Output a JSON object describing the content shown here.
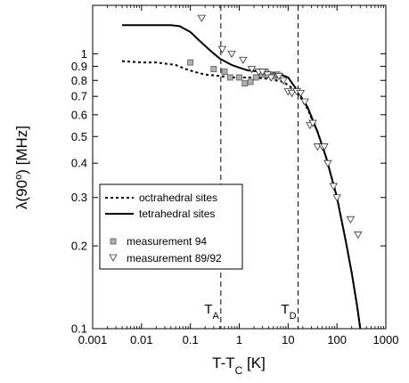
{
  "chart_data": {
    "type": "line",
    "xscale": "log",
    "yscale": "log",
    "xlim": [
      0.001,
      1000
    ],
    "ylim": [
      0.1,
      1.5
    ],
    "xlabel": {
      "main": "T-T",
      "sub": "C",
      "unit": " [K]"
    },
    "ylabel": {
      "main": "λ(90",
      "sup": "o",
      "unit": ") [MHz]"
    },
    "xticks": [
      {
        "value": 0.001,
        "label": "0.001"
      },
      {
        "value": 0.01,
        "label": "0.01"
      },
      {
        "value": 0.1,
        "label": "0.1"
      },
      {
        "value": 1,
        "label": "1"
      },
      {
        "value": 10,
        "label": "10"
      },
      {
        "value": 100,
        "label": "100"
      },
      {
        "value": 1000,
        "label": "1000"
      }
    ],
    "yticks": [
      {
        "value": 0.1,
        "label": "0.1"
      },
      {
        "value": 0.2,
        "label": "0.2"
      },
      {
        "value": 0.3,
        "label": "0.3"
      },
      {
        "value": 0.4,
        "label": "0.4"
      },
      {
        "value": 0.5,
        "label": "0.5"
      },
      {
        "value": 0.6,
        "label": "0.6"
      },
      {
        "value": 0.7,
        "label": "0.7"
      },
      {
        "value": 0.8,
        "label": "0.8"
      },
      {
        "value": 0.9,
        "label": "0.9"
      },
      {
        "value": 1.0,
        "label": "1"
      }
    ],
    "series": [
      {
        "name": "octrahedral sites",
        "kind": "line",
        "style": "dotted",
        "x": [
          0.004,
          0.01,
          0.02,
          0.05,
          0.08,
          0.12,
          0.2,
          0.4,
          0.7,
          1,
          2,
          4,
          8,
          15,
          25,
          40,
          60,
          100,
          150,
          200,
          260,
          300
        ],
        "y": [
          0.94,
          0.93,
          0.93,
          0.91,
          0.88,
          0.86,
          0.84,
          0.83,
          0.82,
          0.82,
          0.82,
          0.81,
          0.79,
          0.73,
          0.63,
          0.52,
          0.42,
          0.3,
          0.21,
          0.16,
          0.12,
          0.1
        ]
      },
      {
        "name": "tetrahedral sites",
        "kind": "line",
        "style": "solid",
        "x": [
          0.004,
          0.01,
          0.02,
          0.04,
          0.06,
          0.1,
          0.15,
          0.25,
          0.4,
          0.7,
          1,
          1.5,
          3,
          6,
          10,
          15,
          25,
          40,
          60,
          100,
          150,
          200,
          260,
          300
        ],
        "y": [
          1.27,
          1.27,
          1.27,
          1.27,
          1.26,
          1.2,
          1.12,
          1.03,
          0.96,
          0.91,
          0.89,
          0.87,
          0.86,
          0.85,
          0.82,
          0.74,
          0.64,
          0.52,
          0.42,
          0.3,
          0.21,
          0.16,
          0.12,
          0.1
        ]
      },
      {
        "name": "measurement 94",
        "kind": "scatter",
        "marker": "square",
        "x": [
          0.1,
          0.3,
          0.5,
          0.65,
          1.0,
          1.3,
          1.7,
          2.2,
          3,
          3.5,
          4.3,
          5.2,
          6
        ],
        "y": [
          0.93,
          0.88,
          0.86,
          0.82,
          0.82,
          0.78,
          0.79,
          0.82,
          0.84,
          0.86,
          0.84,
          0.83,
          0.84
        ]
      },
      {
        "name": "measurement 89/92",
        "kind": "scatter",
        "marker": "triangle-down",
        "x": [
          0.12,
          0.17,
          0.45,
          0.7,
          1.2,
          1.8,
          2.5,
          3,
          3.8,
          4.5,
          6.5,
          8,
          10,
          12,
          15,
          18,
          22,
          28,
          32,
          40,
          50,
          55,
          65,
          85,
          100,
          190,
          270
        ],
        "y": [
          1.55,
          1.35,
          1.04,
          1.0,
          0.95,
          0.88,
          0.86,
          0.86,
          0.84,
          0.82,
          0.83,
          0.8,
          0.73,
          0.72,
          0.73,
          0.72,
          0.67,
          0.55,
          0.56,
          0.46,
          0.46,
          0.46,
          0.4,
          0.33,
          0.3,
          0.25,
          0.22
        ]
      }
    ],
    "vlines": [
      {
        "x": 0.42,
        "label": "T",
        "sub": "A"
      },
      {
        "x": 16,
        "label": "T",
        "sub": "D"
      }
    ],
    "legend": {
      "position": "lower-left"
    }
  }
}
